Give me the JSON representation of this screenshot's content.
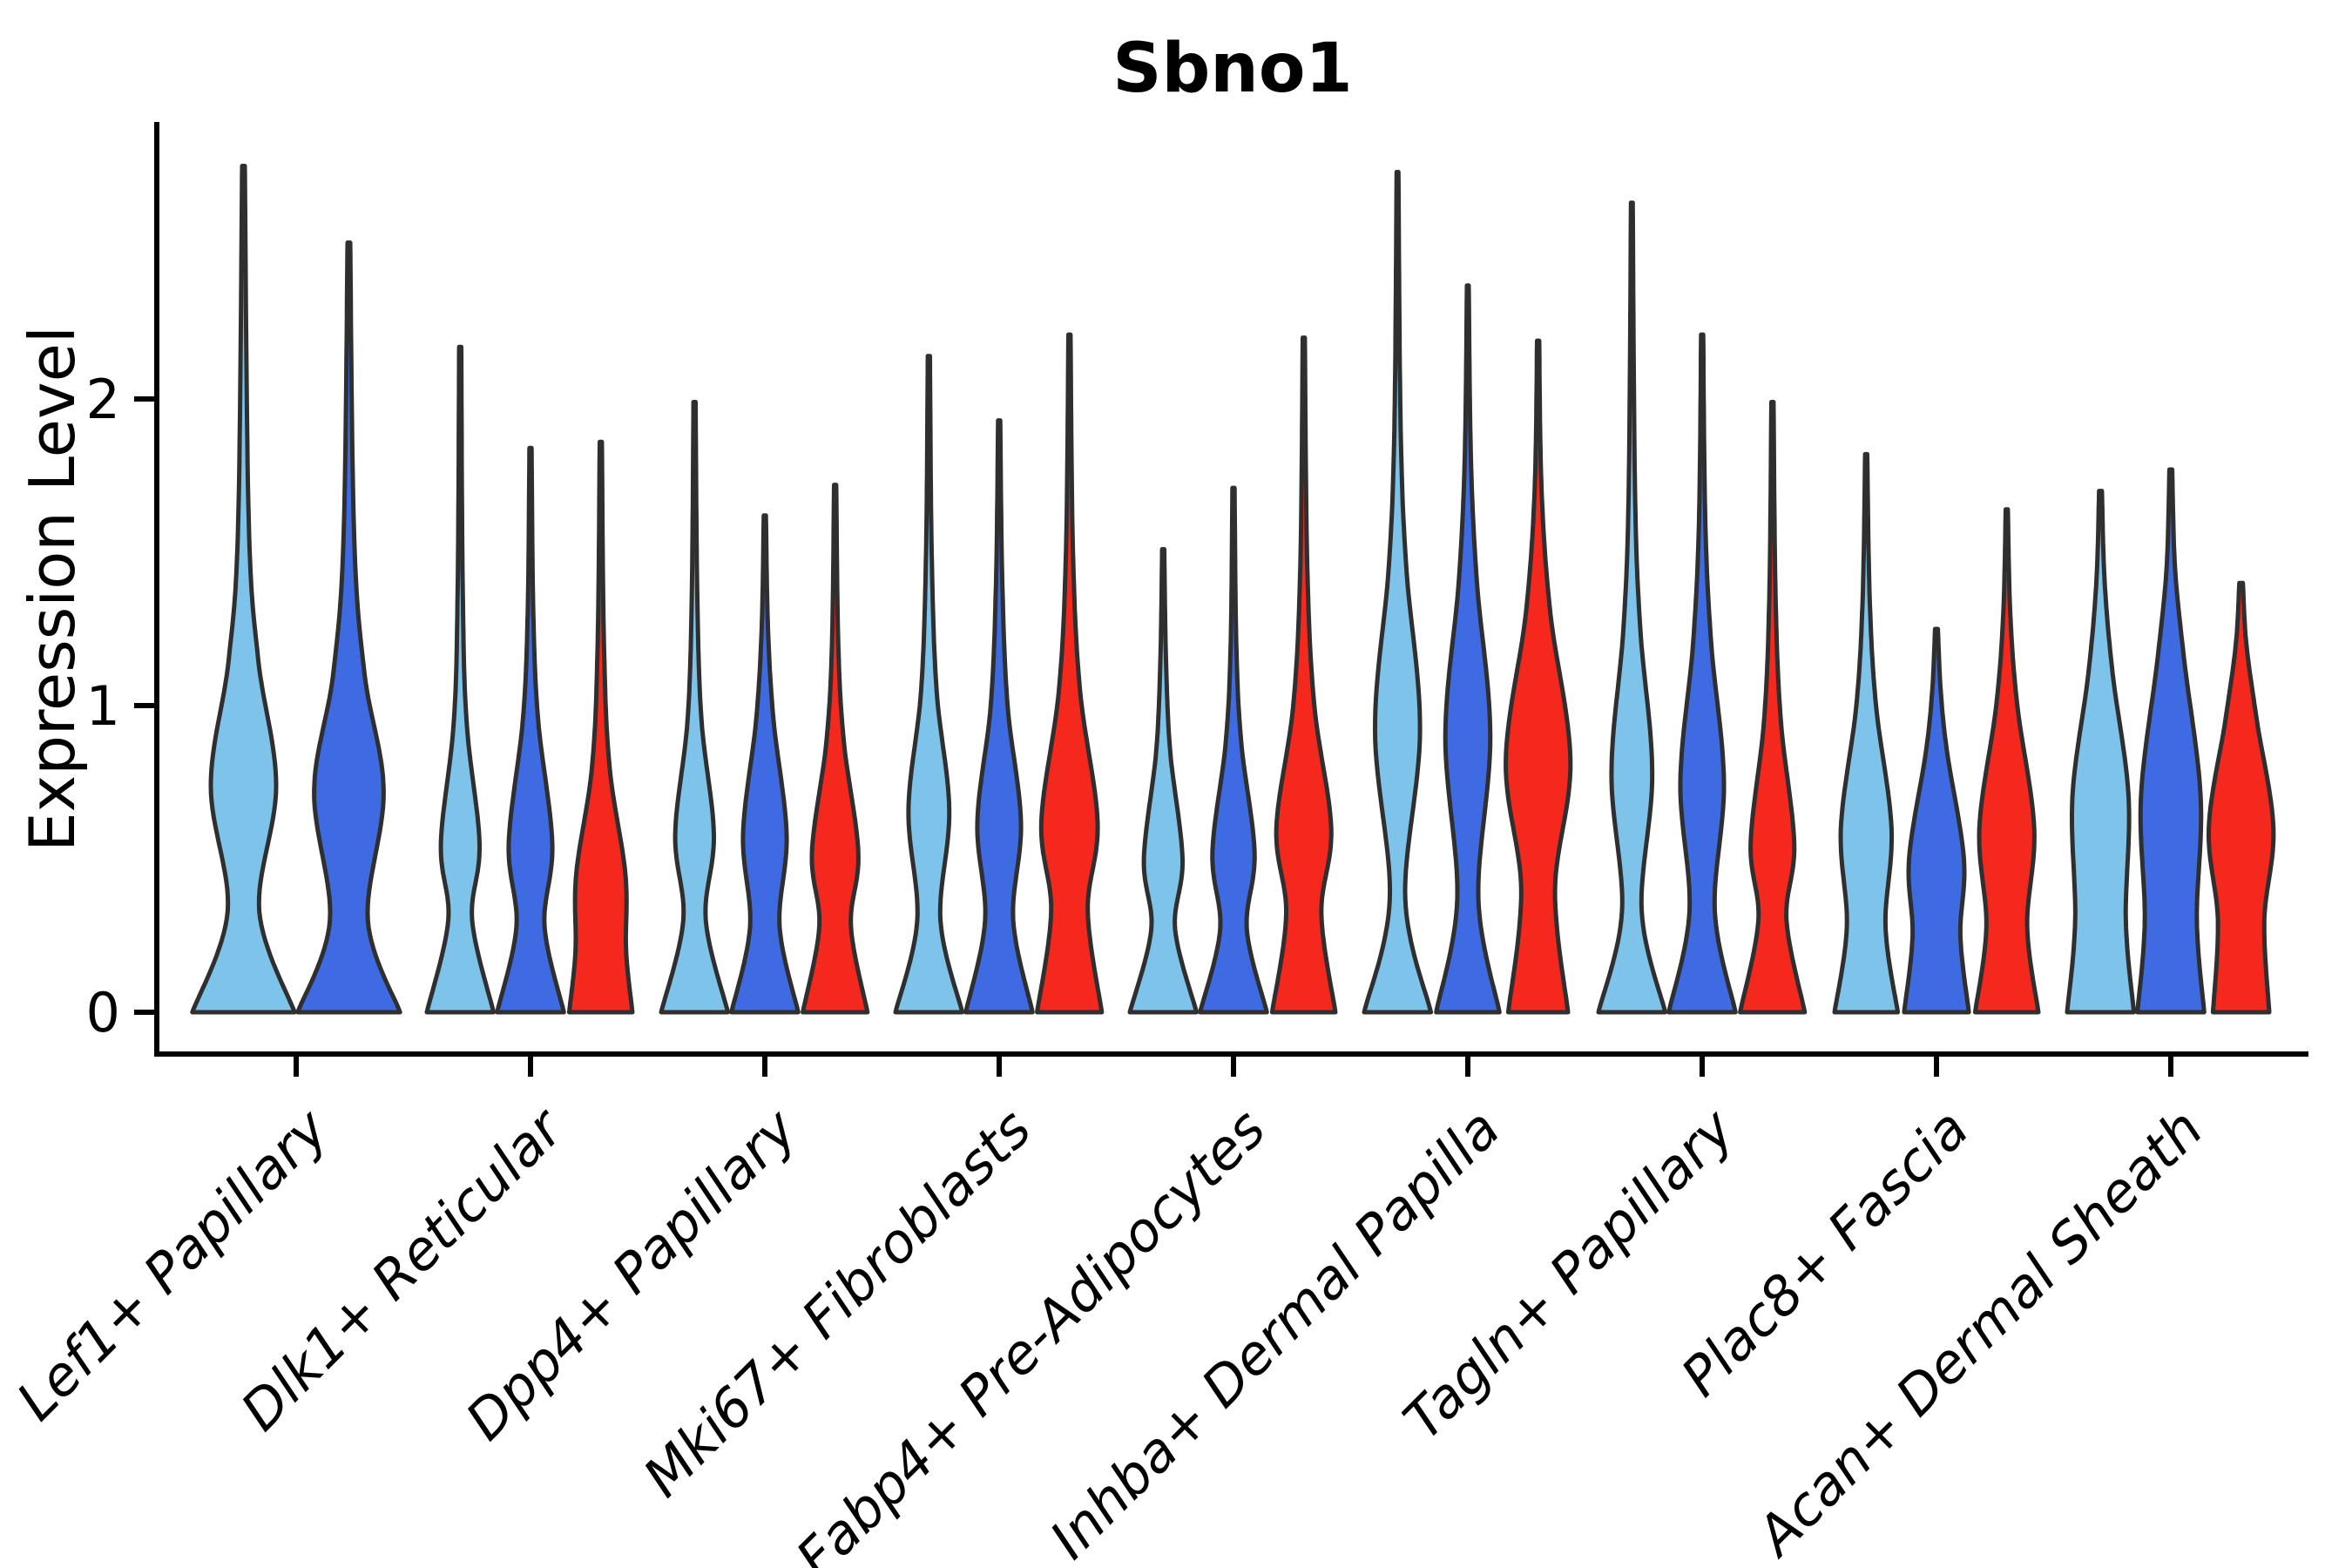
{
  "title": "Sbno1",
  "chart_data": {
    "type": "violin",
    "title": "Sbno1",
    "ylabel": "Expression Level",
    "xlabel": "",
    "yticks": [
      0,
      1,
      2
    ],
    "ylim": [
      0,
      2.9
    ],
    "grid": false,
    "legend": "none",
    "categories": [
      "Lef1+ Papillary",
      "Dlk1+ Reticular",
      "Dpp4+ Papillary",
      "Mki67+ Fibroblasts",
      "Fabp4+ Pre-Adipocytes",
      "Inhba+ Dermal Papilla",
      "Tagln+ Papillary",
      "Plac8+ Fascia",
      "Acan+ Dermal Sheath"
    ],
    "colors": {
      "light_blue": "#7EC3EA",
      "dark_blue": "#3E6BE1",
      "red": "#F5281E",
      "outline": "#2F2F2F",
      "axis": "#000000"
    },
    "series": [
      {
        "id": "light-blue",
        "color": "#7EC3EA",
        "max_expression": [
          2.76,
          2.17,
          1.99,
          2.14,
          1.51,
          2.74,
          2.64,
          1.82,
          1.7
        ]
      },
      {
        "id": "dark-blue",
        "color": "#3E6BE1",
        "max_expression": [
          2.51,
          1.84,
          1.62,
          1.93,
          1.71,
          2.37,
          2.21,
          1.25,
          1.77
        ]
      },
      {
        "id": "red",
        "color": "#F5281E",
        "max_expression": [
          null,
          1.86,
          1.72,
          2.21,
          2.2,
          2.19,
          1.99,
          1.64,
          1.4
        ]
      }
    ],
    "violins": [
      {
        "category": "Lef1+ Papillary",
        "violins": [
          {
            "series": "light-blue",
            "color": "#7EC3EA",
            "peak": 2.76,
            "profile": [
              [
                0,
                0.97
              ],
              [
                0.33,
                0.3
              ],
              [
                0.74,
                0.62
              ],
              [
                1.15,
                0.28
              ],
              [
                1.6,
                0.1
              ],
              [
                2.76,
                0.025
              ]
            ]
          },
          {
            "series": "dark-blue",
            "color": "#3E6BE1",
            "peak": 2.51,
            "profile": [
              [
                0,
                0.97
              ],
              [
                0.3,
                0.36
              ],
              [
                0.72,
                0.66
              ],
              [
                1.1,
                0.3
              ],
              [
                1.55,
                0.1
              ],
              [
                2.51,
                0.025
              ]
            ]
          }
        ]
      },
      {
        "category": "Dlk1+ Reticular",
        "violins": [
          {
            "series": "light-blue",
            "color": "#7EC3EA",
            "peak": 2.17,
            "profile": [
              [
                0,
                0.95
              ],
              [
                0.3,
                0.34
              ],
              [
                0.55,
                0.55
              ],
              [
                0.95,
                0.18
              ],
              [
                1.4,
                0.07
              ],
              [
                2.17,
                0.03
              ]
            ]
          },
          {
            "series": "dark-blue",
            "color": "#3E6BE1",
            "peak": 1.84,
            "profile": [
              [
                0,
                0.95
              ],
              [
                0.28,
                0.4
              ],
              [
                0.55,
                0.62
              ],
              [
                0.95,
                0.22
              ],
              [
                1.3,
                0.08
              ],
              [
                1.84,
                0.03
              ]
            ]
          },
          {
            "series": "red",
            "color": "#F5281E",
            "peak": 1.86,
            "profile": [
              [
                0,
                0.9
              ],
              [
                0.2,
                0.72
              ],
              [
                0.45,
                0.7
              ],
              [
                0.8,
                0.25
              ],
              [
                1.2,
                0.09
              ],
              [
                1.86,
                0.03
              ]
            ]
          }
        ]
      },
      {
        "category": "Dpp4+ Papillary",
        "violins": [
          {
            "series": "light-blue",
            "color": "#7EC3EA",
            "peak": 1.99,
            "profile": [
              [
                0,
                0.95
              ],
              [
                0.3,
                0.32
              ],
              [
                0.58,
                0.55
              ],
              [
                0.95,
                0.2
              ],
              [
                1.35,
                0.08
              ],
              [
                1.99,
                0.03
              ]
            ]
          },
          {
            "series": "dark-blue",
            "color": "#3E6BE1",
            "peak": 1.62,
            "profile": [
              [
                0,
                0.95
              ],
              [
                0.28,
                0.42
              ],
              [
                0.58,
                0.62
              ],
              [
                0.95,
                0.25
              ],
              [
                1.25,
                0.09
              ],
              [
                1.62,
                0.03
              ]
            ]
          },
          {
            "series": "red",
            "color": "#F5281E",
            "peak": 1.72,
            "profile": [
              [
                0,
                0.92
              ],
              [
                0.28,
                0.45
              ],
              [
                0.52,
                0.66
              ],
              [
                0.88,
                0.25
              ],
              [
                1.2,
                0.09
              ],
              [
                1.72,
                0.03
              ]
            ]
          }
        ]
      },
      {
        "category": "Mki67+ Fibroblasts",
        "violins": [
          {
            "series": "light-blue",
            "color": "#7EC3EA",
            "peak": 2.14,
            "profile": [
              [
                0,
                0.95
              ],
              [
                0.3,
                0.33
              ],
              [
                0.66,
                0.58
              ],
              [
                1.05,
                0.22
              ],
              [
                1.5,
                0.08
              ],
              [
                2.14,
                0.03
              ]
            ]
          },
          {
            "series": "dark-blue",
            "color": "#3E6BE1",
            "peak": 1.93,
            "profile": [
              [
                0,
                0.95
              ],
              [
                0.3,
                0.4
              ],
              [
                0.62,
                0.62
              ],
              [
                1.0,
                0.24
              ],
              [
                1.4,
                0.09
              ],
              [
                1.93,
                0.03
              ]
            ]
          },
          {
            "series": "red",
            "color": "#F5281E",
            "peak": 2.21,
            "profile": [
              [
                0,
                0.92
              ],
              [
                0.33,
                0.52
              ],
              [
                0.62,
                0.8
              ],
              [
                1.05,
                0.3
              ],
              [
                1.5,
                0.1
              ],
              [
                2.21,
                0.03
              ]
            ]
          }
        ]
      },
      {
        "category": "Fabp4+ Pre-Adipocytes",
        "violins": [
          {
            "series": "light-blue",
            "color": "#7EC3EA",
            "peak": 1.51,
            "profile": [
              [
                0,
                0.95
              ],
              [
                0.27,
                0.34
              ],
              [
                0.5,
                0.55
              ],
              [
                0.85,
                0.2
              ],
              [
                1.15,
                0.08
              ],
              [
                1.51,
                0.03
              ]
            ]
          },
          {
            "series": "dark-blue",
            "color": "#3E6BE1",
            "peak": 1.71,
            "profile": [
              [
                0,
                0.95
              ],
              [
                0.27,
                0.38
              ],
              [
                0.52,
                0.6
              ],
              [
                0.88,
                0.22
              ],
              [
                1.2,
                0.08
              ],
              [
                1.71,
                0.03
              ]
            ]
          },
          {
            "series": "red",
            "color": "#F5281E",
            "peak": 2.2,
            "profile": [
              [
                0,
                0.9
              ],
              [
                0.32,
                0.5
              ],
              [
                0.6,
                0.78
              ],
              [
                1.0,
                0.3
              ],
              [
                1.45,
                0.1
              ],
              [
                2.2,
                0.03
              ]
            ]
          }
        ]
      },
      {
        "category": "Inhba+ Dermal Papilla",
        "violins": [
          {
            "series": "light-blue",
            "color": "#7EC3EA",
            "peak": 2.74,
            "profile": [
              [
                0,
                0.95
              ],
              [
                0.37,
                0.22
              ],
              [
                0.92,
                0.64
              ],
              [
                1.45,
                0.25
              ],
              [
                1.9,
                0.09
              ],
              [
                2.74,
                0.025
              ]
            ]
          },
          {
            "series": "dark-blue",
            "color": "#3E6BE1",
            "peak": 2.37,
            "profile": [
              [
                0,
                0.9
              ],
              [
                0.37,
                0.3
              ],
              [
                0.9,
                0.64
              ],
              [
                1.4,
                0.26
              ],
              [
                1.8,
                0.09
              ],
              [
                2.37,
                0.025
              ]
            ]
          },
          {
            "series": "red",
            "color": "#F5281E",
            "peak": 2.19,
            "profile": [
              [
                0,
                0.85
              ],
              [
                0.4,
                0.48
              ],
              [
                0.82,
                0.92
              ],
              [
                1.3,
                0.35
              ],
              [
                1.7,
                0.1
              ],
              [
                2.19,
                0.03
              ]
            ]
          }
        ]
      },
      {
        "category": "Tagln+ Papillary",
        "violins": [
          {
            "series": "light-blue",
            "color": "#7EC3EA",
            "peak": 2.64,
            "profile": [
              [
                0,
                0.95
              ],
              [
                0.33,
                0.28
              ],
              [
                0.78,
                0.58
              ],
              [
                1.25,
                0.24
              ],
              [
                1.7,
                0.09
              ],
              [
                2.64,
                0.025
              ]
            ]
          },
          {
            "series": "dark-blue",
            "color": "#3E6BE1",
            "peak": 2.21,
            "profile": [
              [
                0,
                0.95
              ],
              [
                0.33,
                0.36
              ],
              [
                0.75,
                0.62
              ],
              [
                1.2,
                0.26
              ],
              [
                1.6,
                0.09
              ],
              [
                2.21,
                0.03
              ]
            ]
          },
          {
            "series": "red",
            "color": "#F5281E",
            "peak": 1.99,
            "profile": [
              [
                0,
                0.92
              ],
              [
                0.3,
                0.4
              ],
              [
                0.55,
                0.62
              ],
              [
                0.95,
                0.24
              ],
              [
                1.35,
                0.09
              ],
              [
                1.99,
                0.03
              ]
            ]
          }
        ]
      },
      {
        "category": "Plac8+ Fascia",
        "violins": [
          {
            "series": "light-blue",
            "color": "#7EC3EA",
            "peak": 1.82,
            "profile": [
              [
                0,
                0.9
              ],
              [
                0.28,
                0.55
              ],
              [
                0.6,
                0.72
              ],
              [
                1.0,
                0.28
              ],
              [
                1.35,
                0.1
              ],
              [
                1.82,
                0.03
              ]
            ]
          },
          {
            "series": "dark-blue",
            "color": "#3E6BE1",
            "peak": 1.25,
            "profile": [
              [
                0,
                0.92
              ],
              [
                0.25,
                0.68
              ],
              [
                0.5,
                0.78
              ],
              [
                0.85,
                0.3
              ],
              [
                1.05,
                0.12
              ],
              [
                1.25,
                0.04
              ]
            ]
          },
          {
            "series": "red",
            "color": "#F5281E",
            "peak": 1.64,
            "profile": [
              [
                0,
                0.9
              ],
              [
                0.28,
                0.58
              ],
              [
                0.6,
                0.78
              ],
              [
                1.0,
                0.3
              ],
              [
                1.3,
                0.1
              ],
              [
                1.64,
                0.03
              ]
            ]
          }
        ]
      },
      {
        "category": "Acan+ Dermal Sheath",
        "violins": [
          {
            "series": "light-blue",
            "color": "#7EC3EA",
            "peak": 1.7,
            "profile": [
              [
                0,
                0.95
              ],
              [
                0.3,
                0.72
              ],
              [
                0.7,
                0.8
              ],
              [
                1.1,
                0.35
              ],
              [
                1.4,
                0.12
              ],
              [
                1.7,
                0.04
              ]
            ]
          },
          {
            "series": "dark-blue",
            "color": "#3E6BE1",
            "peak": 1.77,
            "profile": [
              [
                0,
                0.95
              ],
              [
                0.3,
                0.74
              ],
              [
                0.7,
                0.85
              ],
              [
                1.15,
                0.38
              ],
              [
                1.45,
                0.12
              ],
              [
                1.77,
                0.04
              ]
            ]
          },
          {
            "series": "red",
            "color": "#F5281E",
            "peak": 1.4,
            "profile": [
              [
                0,
                0.8
              ],
              [
                0.3,
                0.66
              ],
              [
                0.6,
                0.92
              ],
              [
                0.95,
                0.45
              ],
              [
                1.2,
                0.15
              ],
              [
                1.4,
                0.05
              ]
            ]
          }
        ]
      }
    ]
  }
}
